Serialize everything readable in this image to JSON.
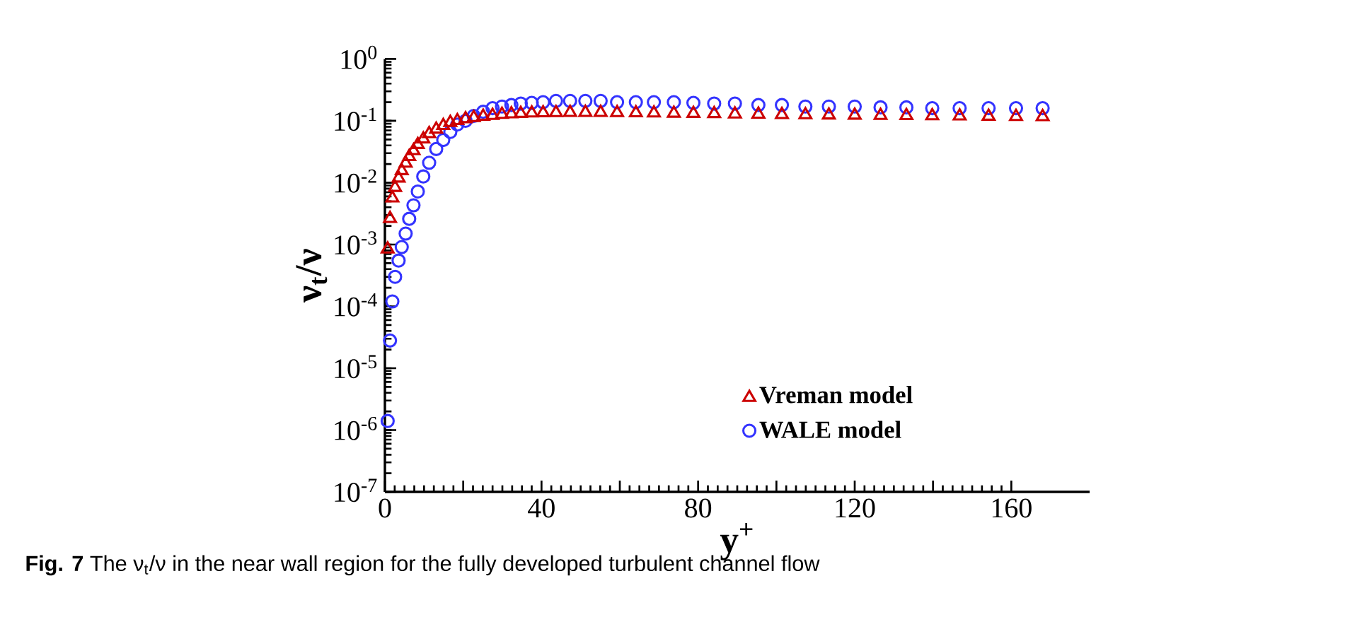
{
  "chart_data": {
    "type": "scatter",
    "xlabel": "y$^{+}$",
    "ylabel": "ν$_{t}$/ν",
    "annotations": [
      "**Fig. 7** The ν$_{t}$/ν in the near wall region for the fully developed turbulent channel flow"
    ],
    "x": [
      0.7,
      1.3,
      1.9,
      2.6,
      3.5,
      4.3,
      5.3,
      6.2,
      7.3,
      8.4,
      9.8,
      11.3,
      13.1,
      14.9,
      16.7,
      18.5,
      20.6,
      22.7,
      25.1,
      27.5,
      29.9,
      32.3,
      34.7,
      37.5,
      40.4,
      43.7,
      47.3,
      51.2,
      55.1,
      59.3,
      64.1,
      68.7,
      73.8,
      78.8,
      84.1,
      89.4,
      95.4,
      101.4,
      107.4,
      113.4,
      120,
      126.6,
      133.2,
      139.8,
      146.8,
      154.2,
      161.2,
      168
    ],
    "series": [
      {
        "name": "Vreman model",
        "color": "#cc0000",
        "marker": "triangle",
        "values": [
          0.0009,
          0.0028,
          0.006,
          0.0089,
          0.0126,
          0.0166,
          0.022,
          0.028,
          0.035,
          0.044,
          0.054,
          0.066,
          0.078,
          0.089,
          0.1,
          0.107,
          0.115,
          0.12,
          0.126,
          0.13,
          0.135,
          0.138,
          0.14,
          0.142,
          0.143,
          0.144,
          0.145,
          0.145,
          0.145,
          0.144,
          0.143,
          0.142,
          0.141,
          0.14,
          0.139,
          0.137,
          0.136,
          0.134,
          0.133,
          0.132,
          0.131,
          0.13,
          0.129,
          0.128,
          0.127,
          0.126,
          0.125,
          0.124
        ]
      },
      {
        "name": "WALE model",
        "color": "#3333ff",
        "marker": "circle",
        "values": [
          1.4e-06,
          2.8e-05,
          0.00012,
          0.0003,
          0.00055,
          0.00091,
          0.0015,
          0.0026,
          0.0043,
          0.0072,
          0.0126,
          0.021,
          0.035,
          0.049,
          0.066,
          0.087,
          0.1,
          0.12,
          0.14,
          0.16,
          0.17,
          0.18,
          0.19,
          0.195,
          0.2,
          0.21,
          0.21,
          0.21,
          0.21,
          0.2,
          0.2,
          0.2,
          0.2,
          0.195,
          0.19,
          0.19,
          0.18,
          0.18,
          0.17,
          0.17,
          0.17,
          0.165,
          0.165,
          0.16,
          0.16,
          0.16,
          0.16,
          0.16
        ]
      }
    ],
    "log": "y",
    "xlim": [
      0,
      180
    ],
    "ylim": [
      1e-07,
      1
    ],
    "xticks": [
      0,
      {
        "value": 20,
        "label": null
      },
      40,
      {
        "value": 60,
        "label": null
      },
      80,
      {
        "value": 100,
        "label": null
      },
      120,
      {
        "value": 140,
        "label": null
      },
      160
    ],
    "yticks": [
      {
        "value": 1e-07,
        "label": "10$^{-7}$"
      },
      {
        "value": 1e-06,
        "label": "10$^{-6}$"
      },
      {
        "value": 1e-05,
        "label": "10$^{-5}$"
      },
      {
        "value": 0.0001,
        "label": "10$^{-4}$"
      },
      {
        "value": 0.001,
        "label": "10$^{-3}$"
      },
      {
        "value": 0.01,
        "label": "10$^{-2}$"
      },
      {
        "value": 0.1,
        "label": "10$^{-1}$"
      },
      {
        "value": 1,
        "label": "10$^{0}$"
      }
    ],
    "grid": false,
    "legend": "bottom"
  }
}
